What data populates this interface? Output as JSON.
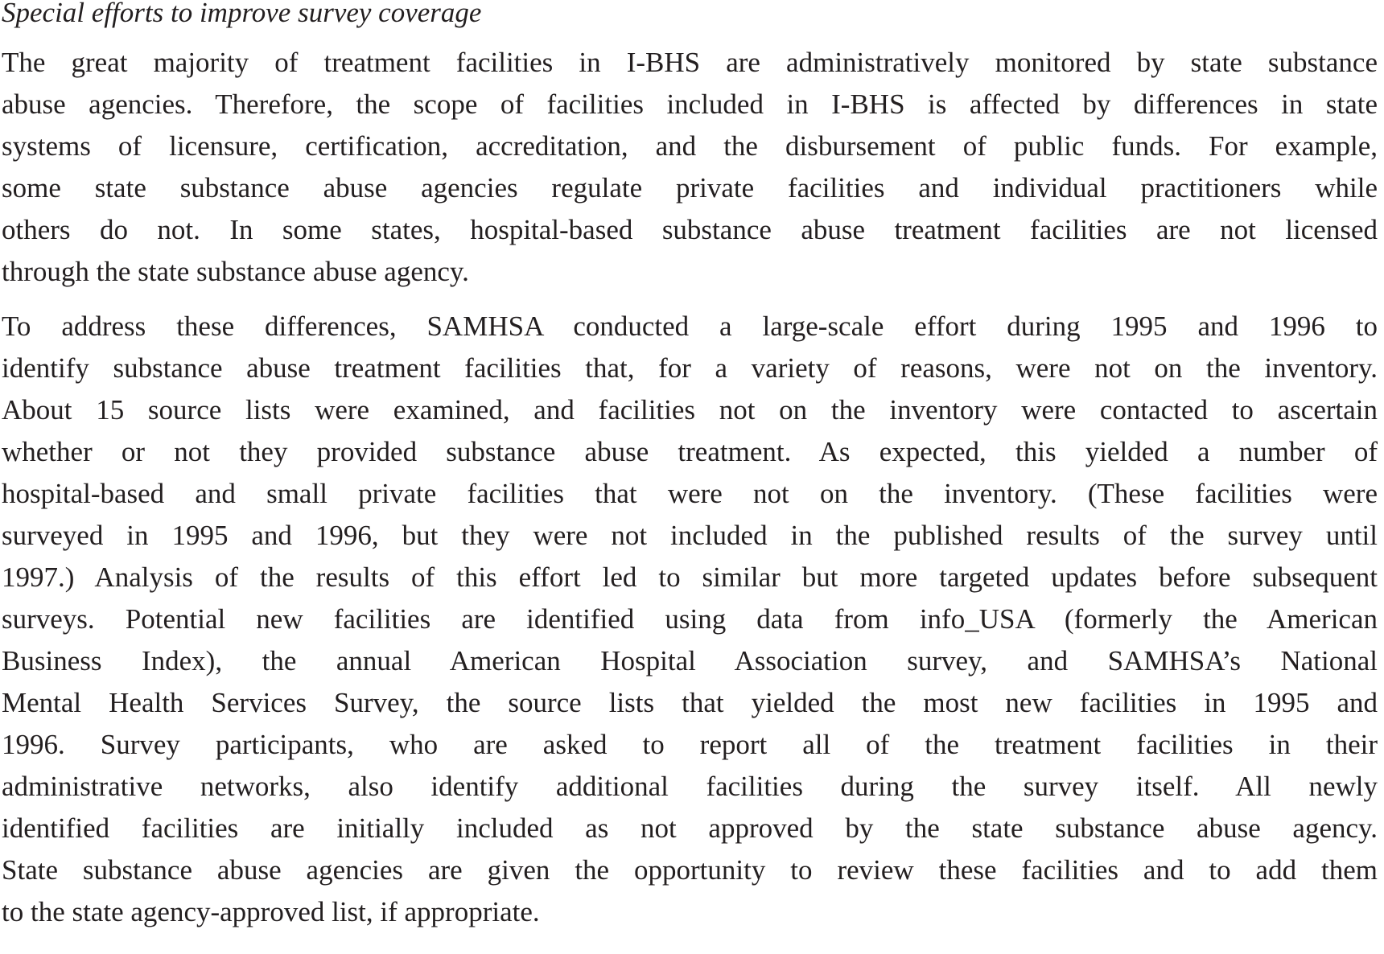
{
  "heading": "Special efforts to improve survey coverage",
  "paragraphs": [
    {
      "lines": [
        "The great majority of treatment facilities in I-BHS are administratively monitored by state substance",
        "abuse agencies. Therefore, the scope of facilities included in I-BHS is affected by differences in state",
        "systems of licensure, certification, accreditation, and the disbursement of public funds. For example,",
        "some state substance abuse agencies regulate private facilities and individual practitioners while",
        "others do not. In some states, hospital-based substance abuse treatment facilities are not licensed",
        "through the state substance abuse agency."
      ]
    },
    {
      "lines": [
        "To address these differences, SAMHSA conducted a large-scale effort during 1995 and 1996 to",
        "identify substance abuse treatment facilities that, for a variety of reasons, were not on the inventory.",
        "About 15 source lists were examined, and facilities not on the inventory were contacted to ascertain",
        "whether or not they provided substance abuse treatment. As expected, this yielded a number of",
        "hospital-based and small private facilities that were not on the inventory. (These facilities were",
        "surveyed in 1995 and 1996, but they were not included in the published results of the survey until",
        "1997.) Analysis of the results of this effort led to similar but more targeted updates before subsequent",
        "surveys. Potential new facilities are identified using data from info_USA (formerly the American",
        "Business Index), the annual American Hospital Association survey, and SAMHSA’s National",
        "Mental Health Services Survey, the source lists that yielded the most new facilities in 1995 and",
        "1996. Survey participants, who are asked to report all of the treatment facilities in their",
        "administrative networks, also identify additional facilities during the survey itself. All newly",
        "identified facilities are initially included as not approved by the state substance abuse agency.",
        "State substance abuse agencies are given the opportunity to review these facilities and to add them",
        "to the state agency-approved list, if appropriate."
      ]
    }
  ]
}
